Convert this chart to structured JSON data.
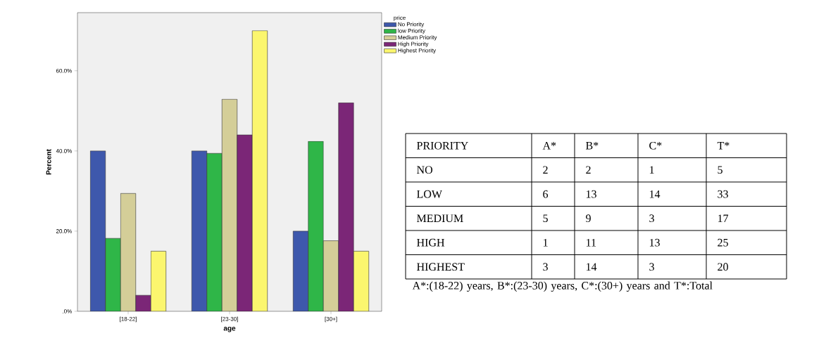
{
  "chart_data": [
    {
      "type": "bar",
      "xlabel": "age",
      "ylabel": "Percent",
      "legend_title": "price",
      "legend": "top right",
      "categories": [
        "[18-22]",
        "[23-30]",
        "[30+]"
      ],
      "series": [
        {
          "name": "No Priority",
          "color": "#3e58ac",
          "values": [
            40.0,
            40.0,
            20.0
          ]
        },
        {
          "name": "low Priority",
          "color": "#2fb648",
          "values": [
            18.2,
            39.4,
            42.4
          ]
        },
        {
          "name": "Medium Priority",
          "color": "#d4ce98",
          "values": [
            29.4,
            52.9,
            17.6
          ]
        },
        {
          "name": "High Priority",
          "color": "#7b2677",
          "values": [
            4.0,
            44.0,
            52.0
          ]
        },
        {
          "name": "Highest Priority",
          "color": "#fbf66e",
          "values": [
            15.0,
            70.0,
            15.0
          ]
        }
      ],
      "ylim": [
        0,
        74.5
      ],
      "yticks": [
        {
          "value": 0,
          "label": ".0%"
        },
        {
          "value": 20,
          "label": "20.0%"
        },
        {
          "value": 40,
          "label": "40.0%"
        },
        {
          "value": 60,
          "label": "60.0%"
        }
      ]
    },
    {
      "type": "heatmap",
      "ylabel": "PRIORITY",
      "categories": [
        "A*",
        "B*",
        "C*",
        "T*"
      ],
      "y_categories": [
        "NO",
        "LOW",
        "MEDIUM",
        "HIGH",
        "HIGHEST"
      ],
      "cells": [
        [
          2,
          2,
          1,
          5
        ],
        [
          6,
          13,
          14,
          33
        ],
        [
          5,
          9,
          3,
          17
        ],
        [
          1,
          11,
          13,
          25
        ],
        [
          3,
          14,
          3,
          20
        ]
      ],
      "data_labels": true,
      "annotations": [
        "A*:(18-22) years,  B*:(23-30) years,  C*:(30+) years and  T*:Total"
      ]
    }
  ]
}
